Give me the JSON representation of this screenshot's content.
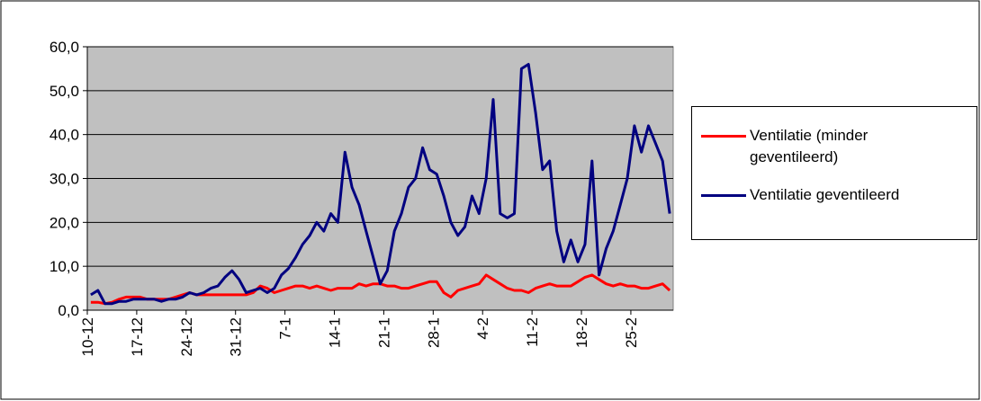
{
  "chart_data": {
    "type": "line",
    "categories": [
      "10-12",
      null,
      null,
      null,
      null,
      null,
      null,
      "17-12",
      null,
      null,
      null,
      null,
      null,
      null,
      "24-12",
      null,
      null,
      null,
      null,
      null,
      null,
      "31-12",
      null,
      null,
      null,
      null,
      null,
      null,
      "7-1",
      null,
      null,
      null,
      null,
      null,
      null,
      "14-1",
      null,
      null,
      null,
      null,
      null,
      null,
      "21-1",
      null,
      null,
      null,
      null,
      null,
      null,
      "28-1",
      null,
      null,
      null,
      null,
      null,
      null,
      "4-2",
      null,
      null,
      null,
      null,
      null,
      null,
      "11-2",
      null,
      null,
      null,
      null,
      null,
      null,
      "18-2",
      null,
      null,
      null,
      null,
      null,
      null,
      "25-2",
      null,
      null,
      null,
      null,
      null
    ],
    "series": [
      {
        "name": "Ventilatie (minder geventileerd)",
        "color": "#ff0000",
        "values": [
          1.8,
          1.8,
          1.5,
          1.8,
          2.5,
          3,
          3,
          3,
          2.5,
          2.5,
          2.5,
          2.5,
          3,
          3.5,
          4,
          3.5,
          3.5,
          3.5,
          3.5,
          3.5,
          3.5,
          3.5,
          3.5,
          4,
          5.5,
          5,
          4,
          4.5,
          5,
          5.5,
          5.5,
          5,
          5.5,
          5,
          4.5,
          5,
          5,
          5,
          6,
          5.5,
          6,
          6,
          5.5,
          5.5,
          5,
          5,
          5.5,
          6,
          6.5,
          6.5,
          4,
          3,
          4.5,
          5,
          5.5,
          6,
          8,
          7,
          6,
          5,
          4.5,
          4.5,
          4,
          5,
          5.5,
          6,
          5.5,
          5.5,
          5.5,
          6.5,
          7.5,
          8,
          7,
          6,
          5.5,
          6,
          5.5,
          5.5,
          5,
          5,
          5.5,
          6,
          4.5
        ]
      },
      {
        "name": "Ventilatie geventileerd",
        "color": "#000080",
        "values": [
          3.5,
          4.5,
          1.5,
          1.5,
          2,
          2,
          2.5,
          2.5,
          2.5,
          2.5,
          2,
          2.5,
          2.5,
          3,
          4,
          3.5,
          4,
          5,
          5.5,
          7.5,
          9,
          7,
          4,
          4.5,
          5,
          4,
          5,
          8,
          9.5,
          12,
          15,
          17,
          20,
          18,
          22,
          20,
          36,
          28,
          24,
          18,
          12,
          6,
          9,
          18,
          22,
          28,
          30,
          37,
          32,
          31,
          26,
          20,
          17,
          19,
          26,
          22,
          30,
          48,
          22,
          21,
          22,
          55,
          56,
          45,
          32,
          34,
          18,
          11,
          16,
          11,
          15,
          34,
          8,
          14,
          18,
          24,
          30,
          42,
          36,
          42,
          38,
          34,
          22
        ]
      }
    ],
    "ylim": [
      0,
      60
    ],
    "yticks": [
      {
        "value": 0,
        "label": "0,0"
      },
      {
        "value": 10,
        "label": "10,0"
      },
      {
        "value": 20,
        "label": "20,0"
      },
      {
        "value": 30,
        "label": "30,0"
      },
      {
        "value": 40,
        "label": "40,0"
      },
      {
        "value": 50,
        "label": "50,0"
      },
      {
        "value": 60,
        "label": "60,0"
      }
    ],
    "grid": true,
    "plot_background": "#c0c0c0",
    "legend": "right"
  }
}
